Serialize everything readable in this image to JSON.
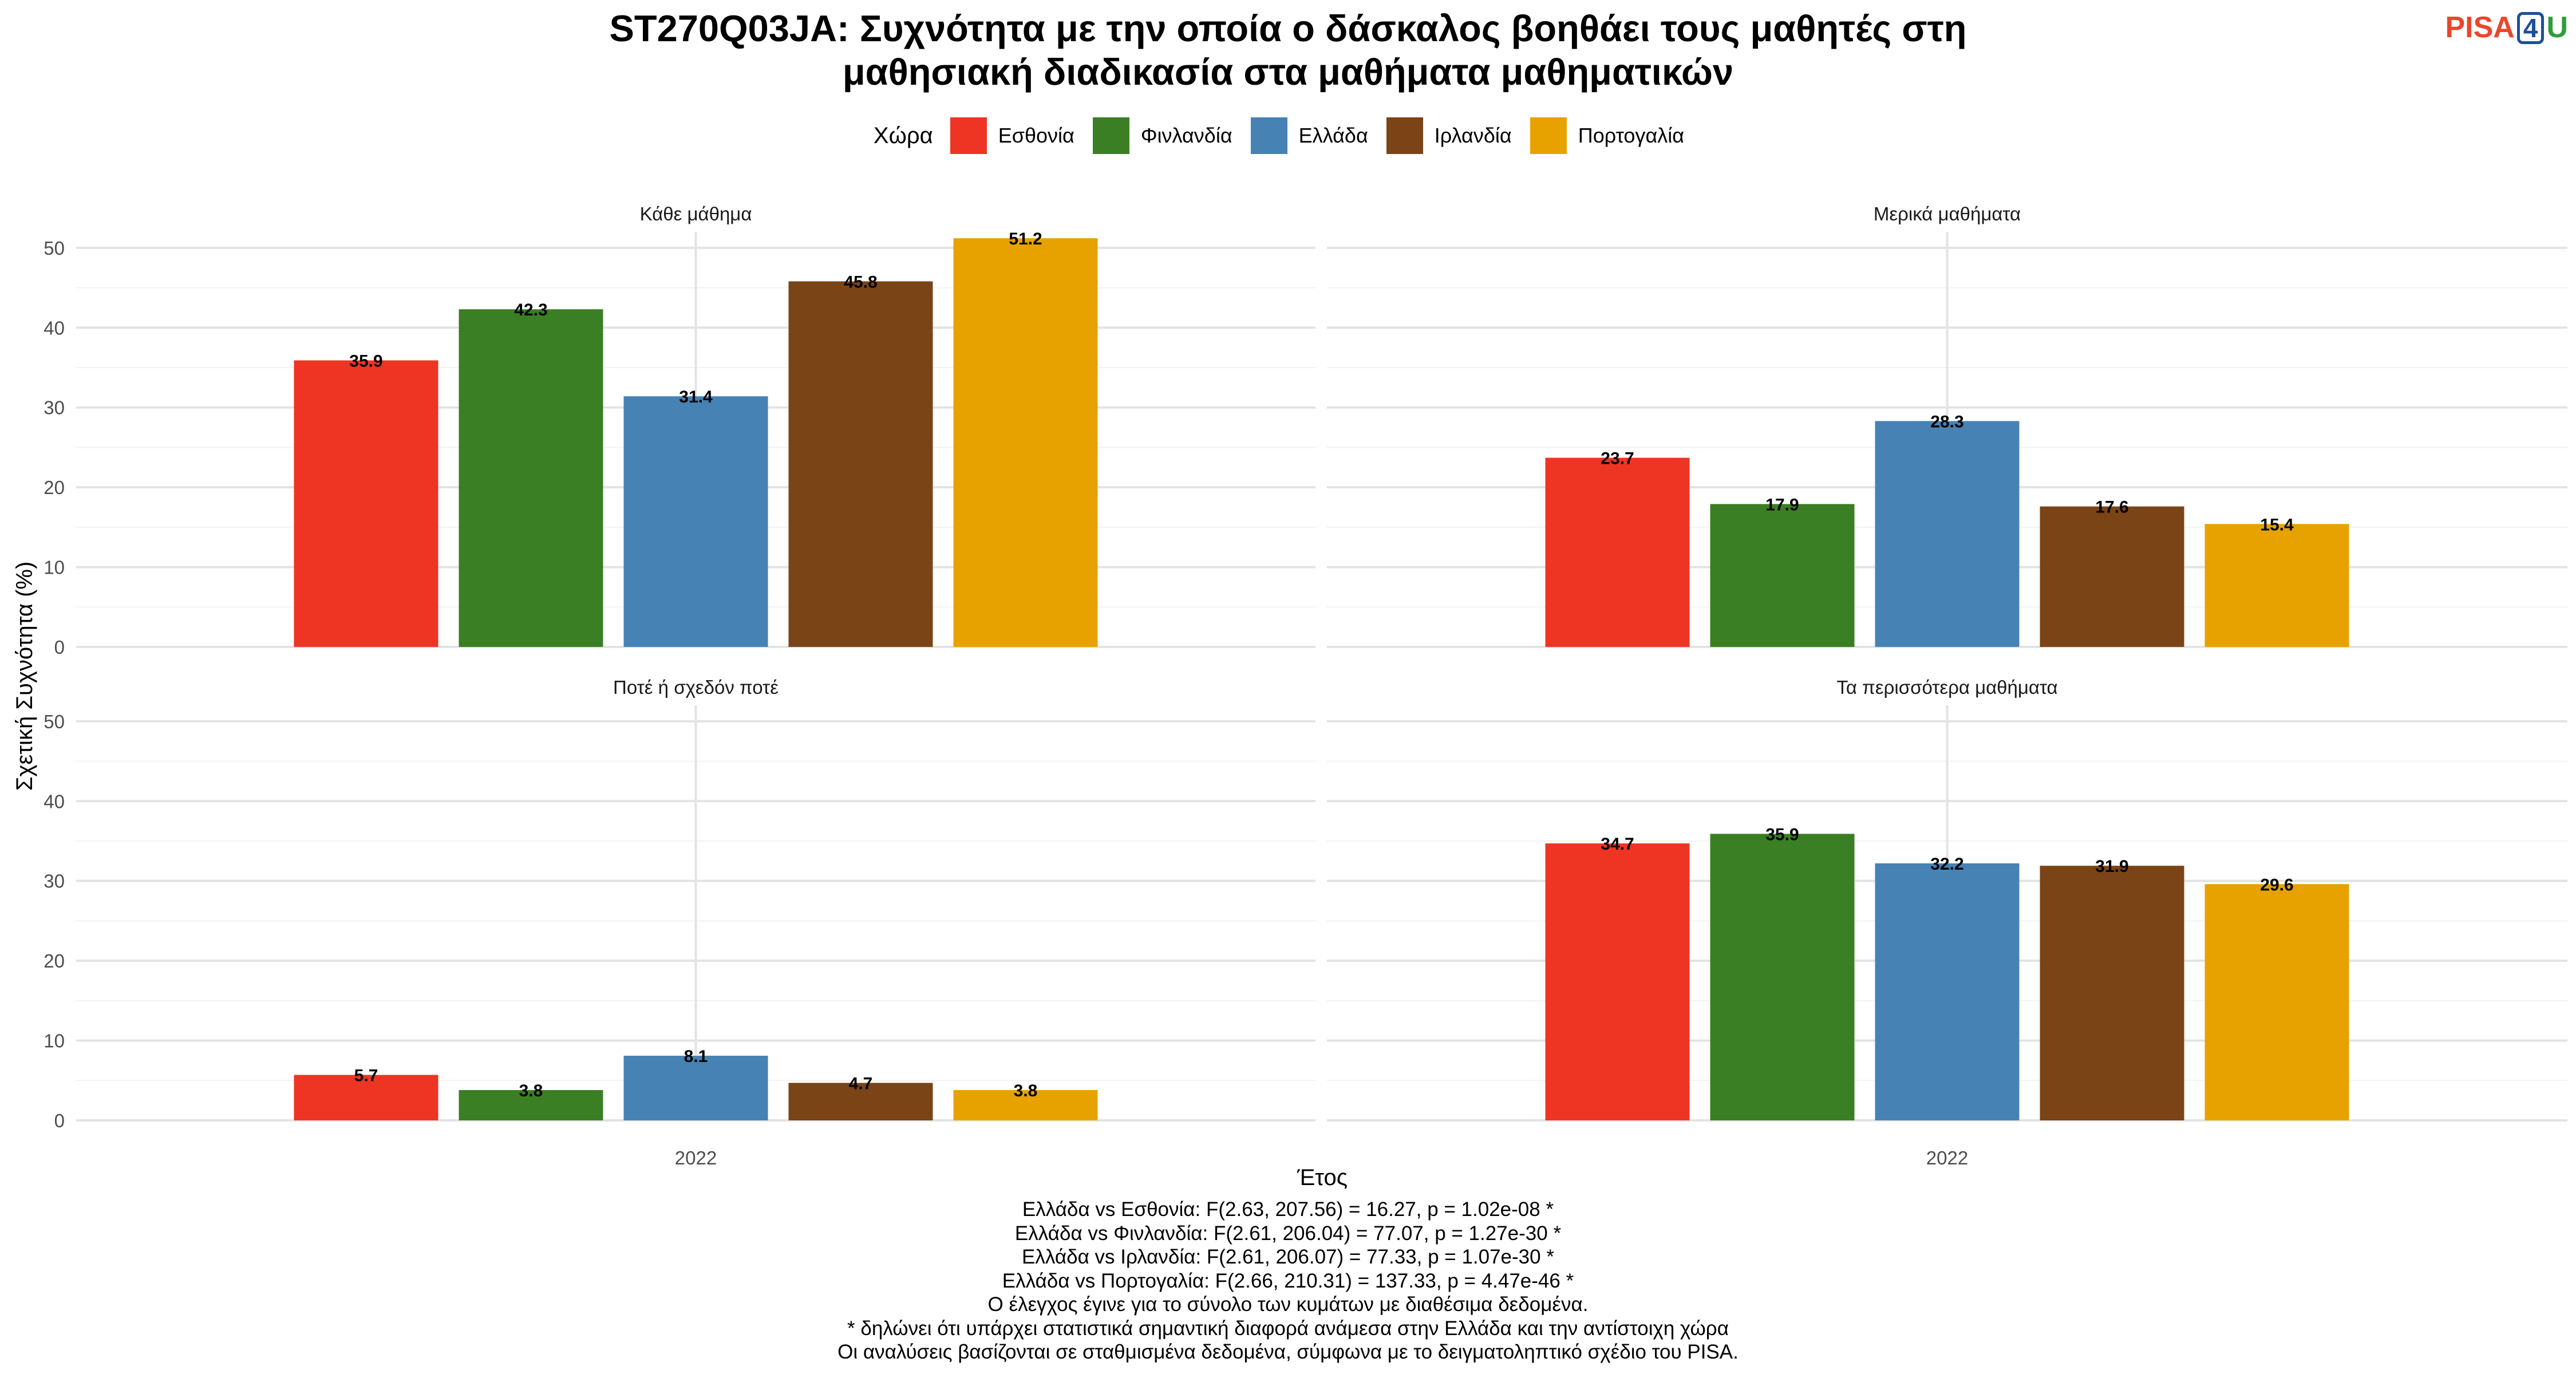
{
  "title_lines": [
    "ST270Q03JA: Συχνότητα με την οποία ο δάσκαλος βοηθάει τους μαθητές στη",
    "μαθησιακή διαδικασία στα μαθήματα μαθηματικών"
  ],
  "logo": {
    "part1": "PISA",
    "part2": "4",
    "part3": "U"
  },
  "colors": {
    "Εσθονία": "#ee3524",
    "Φινλανδία": "#3a7f23",
    "Ελλάδα": "#4682b4",
    "Ιρλανδία": "#7a4416",
    "Πορτογαλία": "#e8a200"
  },
  "chart_data": {
    "type": "bar",
    "ylabel": "Σχετική Συχνότητα (%)",
    "xlabel": "Έτος",
    "ylim": [
      0,
      52
    ],
    "yticks": [
      0,
      10,
      20,
      30,
      40,
      50
    ],
    "grid": true,
    "legend_title": "Χώρα",
    "legend_position": "top",
    "categories": [
      "Εσθονία",
      "Φινλανδία",
      "Ελλάδα",
      "Ιρλανδία",
      "Πορτογαλία"
    ],
    "x_tick": "2022",
    "facets": [
      {
        "label": "Κάθε μάθημα",
        "values": [
          35.9,
          42.3,
          31.4,
          45.8,
          51.2
        ]
      },
      {
        "label": "Μερικά μαθήματα",
        "values": [
          23.7,
          17.9,
          28.3,
          17.6,
          15.4
        ]
      },
      {
        "label": "Ποτέ ή σχεδόν ποτέ",
        "values": [
          5.7,
          3.8,
          8.1,
          4.7,
          3.8
        ]
      },
      {
        "label": "Τα περισσότερα μαθήματα",
        "values": [
          34.7,
          35.9,
          32.2,
          31.9,
          29.6
        ]
      }
    ]
  },
  "notes": [
    "Ελλάδα vs Εσθονία: F(2.63, 207.56) = 16.27, p = 1.02e-08 *",
    "Ελλάδα vs Φινλανδία: F(2.61, 206.04) = 77.07, p = 1.27e-30 *",
    "Ελλάδα vs Ιρλανδία: F(2.61, 206.07) = 77.33, p = 1.07e-30 *",
    "Ελλάδα vs Πορτογαλία: F(2.66, 210.31) = 137.33, p = 4.47e-46 *",
    "Ο έλεγχος έγινε για το σύνολο των κυμάτων με διαθέσιμα δεδομένα.",
    "* δηλώνει ότι υπάρχει στατιστικά σημαντική διαφορά ανάμεσα στην Ελλάδα και την αντίστοιχη χώρα",
    "Οι αναλύσεις βασίζονται σε σταθμισμένα δεδομένα, σύμφωνα με το δειγματοληπτικό σχέδιο του PISA."
  ]
}
